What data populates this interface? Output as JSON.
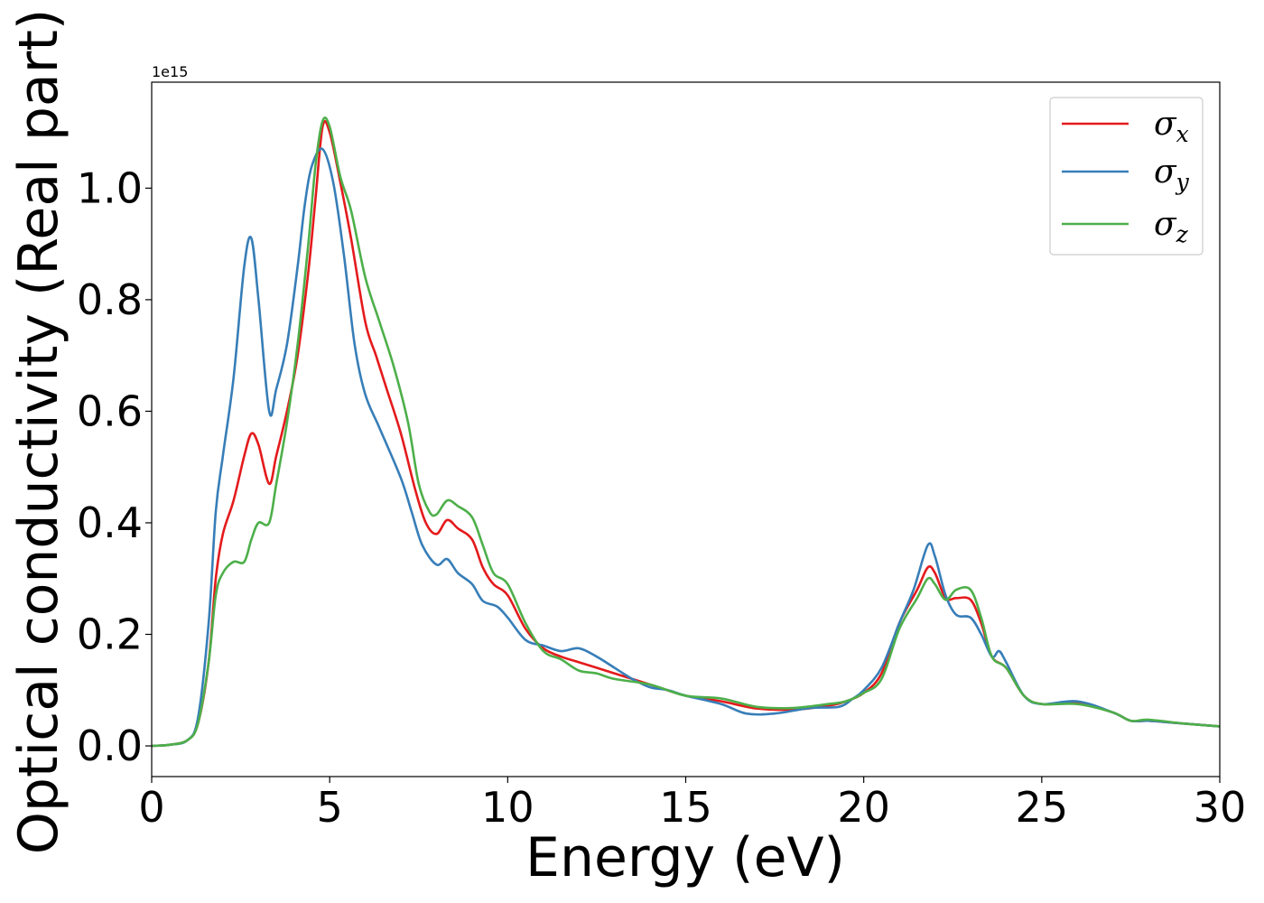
{
  "chart_data": {
    "type": "line",
    "title": "",
    "xlabel": "Energy (eV)",
    "ylabel": "Optical conductivity (Real part)",
    "y_offset_label": "1e15",
    "xlim": [
      0,
      30
    ],
    "ylim": [
      -0.055,
      1.19
    ],
    "x_ticks": [
      0,
      5,
      10,
      15,
      20,
      25,
      30
    ],
    "x_tick_labels": [
      "0",
      "5",
      "10",
      "15",
      "20",
      "25",
      "30"
    ],
    "y_ticks": [
      0.0,
      0.2,
      0.4,
      0.6,
      0.8,
      1.0
    ],
    "y_tick_labels": [
      "0.0",
      "0.2",
      "0.4",
      "0.6",
      "0.8",
      "1.0"
    ],
    "grid": false,
    "legend_position": "top-right",
    "series": [
      {
        "name": "σ",
        "subscript": "x",
        "color": "#e41a1c",
        "points": [
          [
            0,
            0
          ],
          [
            0.5,
            0.002
          ],
          [
            1.0,
            0.01
          ],
          [
            1.3,
            0.04
          ],
          [
            1.6,
            0.15
          ],
          [
            1.8,
            0.3
          ],
          [
            2.0,
            0.38
          ],
          [
            2.3,
            0.44
          ],
          [
            2.6,
            0.52
          ],
          [
            2.8,
            0.56
          ],
          [
            3.0,
            0.54
          ],
          [
            3.3,
            0.47
          ],
          [
            3.5,
            0.52
          ],
          [
            3.8,
            0.6
          ],
          [
            4.1,
            0.7
          ],
          [
            4.4,
            0.85
          ],
          [
            4.6,
            0.98
          ],
          [
            4.8,
            1.11
          ],
          [
            5.0,
            1.1
          ],
          [
            5.3,
            1.01
          ],
          [
            5.6,
            0.91
          ],
          [
            6.0,
            0.76
          ],
          [
            6.3,
            0.7
          ],
          [
            6.6,
            0.64
          ],
          [
            7.0,
            0.56
          ],
          [
            7.4,
            0.46
          ],
          [
            7.7,
            0.4
          ],
          [
            8.0,
            0.38
          ],
          [
            8.3,
            0.405
          ],
          [
            8.6,
            0.39
          ],
          [
            9.0,
            0.37
          ],
          [
            9.3,
            0.32
          ],
          [
            9.6,
            0.29
          ],
          [
            10.0,
            0.27
          ],
          [
            10.5,
            0.21
          ],
          [
            11.0,
            0.175
          ],
          [
            11.5,
            0.16
          ],
          [
            12.0,
            0.15
          ],
          [
            12.5,
            0.14
          ],
          [
            13.0,
            0.13
          ],
          [
            14.0,
            0.11
          ],
          [
            15.0,
            0.09
          ],
          [
            16.0,
            0.08
          ],
          [
            17.0,
            0.067
          ],
          [
            18.0,
            0.065
          ],
          [
            19.0,
            0.072
          ],
          [
            19.5,
            0.08
          ],
          [
            20.0,
            0.095
          ],
          [
            20.5,
            0.13
          ],
          [
            21.0,
            0.22
          ],
          [
            21.5,
            0.28
          ],
          [
            21.8,
            0.32
          ],
          [
            22.0,
            0.31
          ],
          [
            22.3,
            0.265
          ],
          [
            22.6,
            0.265
          ],
          [
            23.0,
            0.262
          ],
          [
            23.3,
            0.22
          ],
          [
            23.6,
            0.16
          ],
          [
            24.0,
            0.14
          ],
          [
            24.5,
            0.09
          ],
          [
            25.0,
            0.075
          ],
          [
            26.0,
            0.077
          ],
          [
            27.0,
            0.06
          ],
          [
            27.5,
            0.045
          ],
          [
            28.0,
            0.045
          ],
          [
            29.0,
            0.04
          ],
          [
            30.0,
            0.035
          ]
        ]
      },
      {
        "name": "σ",
        "subscript": "y",
        "color": "#377eb8",
        "points": [
          [
            0,
            0
          ],
          [
            0.5,
            0.002
          ],
          [
            1.0,
            0.01
          ],
          [
            1.3,
            0.05
          ],
          [
            1.6,
            0.22
          ],
          [
            1.8,
            0.42
          ],
          [
            2.0,
            0.52
          ],
          [
            2.3,
            0.66
          ],
          [
            2.6,
            0.86
          ],
          [
            2.8,
            0.91
          ],
          [
            3.0,
            0.8
          ],
          [
            3.3,
            0.6
          ],
          [
            3.5,
            0.64
          ],
          [
            3.8,
            0.72
          ],
          [
            4.1,
            0.86
          ],
          [
            4.3,
            0.97
          ],
          [
            4.5,
            1.04
          ],
          [
            4.8,
            1.07
          ],
          [
            5.1,
            1.01
          ],
          [
            5.4,
            0.88
          ],
          [
            5.7,
            0.72
          ],
          [
            6.0,
            0.63
          ],
          [
            6.4,
            0.57
          ],
          [
            7.0,
            0.48
          ],
          [
            7.3,
            0.42
          ],
          [
            7.6,
            0.36
          ],
          [
            8.0,
            0.325
          ],
          [
            8.3,
            0.335
          ],
          [
            8.6,
            0.31
          ],
          [
            9.0,
            0.29
          ],
          [
            9.3,
            0.26
          ],
          [
            9.7,
            0.25
          ],
          [
            10.0,
            0.23
          ],
          [
            10.5,
            0.19
          ],
          [
            11.0,
            0.18
          ],
          [
            11.5,
            0.17
          ],
          [
            12.0,
            0.175
          ],
          [
            12.5,
            0.16
          ],
          [
            13.0,
            0.14
          ],
          [
            13.5,
            0.12
          ],
          [
            14.0,
            0.105
          ],
          [
            14.5,
            0.1
          ],
          [
            15.0,
            0.09
          ],
          [
            16.0,
            0.075
          ],
          [
            16.7,
            0.058
          ],
          [
            17.5,
            0.058
          ],
          [
            18.5,
            0.068
          ],
          [
            19.3,
            0.07
          ],
          [
            19.7,
            0.085
          ],
          [
            20.0,
            0.1
          ],
          [
            20.5,
            0.14
          ],
          [
            21.0,
            0.22
          ],
          [
            21.4,
            0.28
          ],
          [
            21.8,
            0.36
          ],
          [
            22.0,
            0.34
          ],
          [
            22.3,
            0.27
          ],
          [
            22.6,
            0.235
          ],
          [
            23.0,
            0.23
          ],
          [
            23.3,
            0.2
          ],
          [
            23.6,
            0.16
          ],
          [
            23.8,
            0.17
          ],
          [
            24.0,
            0.15
          ],
          [
            24.5,
            0.09
          ],
          [
            25.0,
            0.075
          ],
          [
            26.0,
            0.08
          ],
          [
            27.0,
            0.06
          ],
          [
            27.5,
            0.045
          ],
          [
            28.0,
            0.045
          ],
          [
            29.0,
            0.04
          ],
          [
            30.0,
            0.035
          ]
        ]
      },
      {
        "name": "σ",
        "subscript": "z",
        "color": "#4daf4a",
        "points": [
          [
            0,
            0
          ],
          [
            0.5,
            0.002
          ],
          [
            1.0,
            0.01
          ],
          [
            1.3,
            0.04
          ],
          [
            1.6,
            0.15
          ],
          [
            1.8,
            0.27
          ],
          [
            2.0,
            0.31
          ],
          [
            2.3,
            0.33
          ],
          [
            2.6,
            0.33
          ],
          [
            2.8,
            0.37
          ],
          [
            3.0,
            0.4
          ],
          [
            3.3,
            0.4
          ],
          [
            3.5,
            0.47
          ],
          [
            3.8,
            0.58
          ],
          [
            4.1,
            0.72
          ],
          [
            4.4,
            0.9
          ],
          [
            4.6,
            1.04
          ],
          [
            4.8,
            1.12
          ],
          [
            5.0,
            1.11
          ],
          [
            5.3,
            1.02
          ],
          [
            5.6,
            0.96
          ],
          [
            6.0,
            0.84
          ],
          [
            6.4,
            0.76
          ],
          [
            6.8,
            0.68
          ],
          [
            7.2,
            0.58
          ],
          [
            7.5,
            0.47
          ],
          [
            7.8,
            0.42
          ],
          [
            8.0,
            0.415
          ],
          [
            8.3,
            0.44
          ],
          [
            8.6,
            0.43
          ],
          [
            9.0,
            0.41
          ],
          [
            9.3,
            0.36
          ],
          [
            9.6,
            0.31
          ],
          [
            10.0,
            0.29
          ],
          [
            10.5,
            0.22
          ],
          [
            11.0,
            0.17
          ],
          [
            11.5,
            0.155
          ],
          [
            12.0,
            0.135
          ],
          [
            12.5,
            0.13
          ],
          [
            13.0,
            0.12
          ],
          [
            14.0,
            0.11
          ],
          [
            15.0,
            0.09
          ],
          [
            16.0,
            0.085
          ],
          [
            17.0,
            0.07
          ],
          [
            18.0,
            0.068
          ],
          [
            19.0,
            0.075
          ],
          [
            19.5,
            0.08
          ],
          [
            20.0,
            0.095
          ],
          [
            20.5,
            0.12
          ],
          [
            21.0,
            0.21
          ],
          [
            21.5,
            0.265
          ],
          [
            21.8,
            0.3
          ],
          [
            22.0,
            0.29
          ],
          [
            22.3,
            0.262
          ],
          [
            22.6,
            0.28
          ],
          [
            23.0,
            0.28
          ],
          [
            23.3,
            0.23
          ],
          [
            23.6,
            0.16
          ],
          [
            24.0,
            0.14
          ],
          [
            24.5,
            0.09
          ],
          [
            25.0,
            0.075
          ],
          [
            26.0,
            0.075
          ],
          [
            27.0,
            0.06
          ],
          [
            27.5,
            0.045
          ],
          [
            28.0,
            0.047
          ],
          [
            29.0,
            0.04
          ],
          [
            30.0,
            0.035
          ]
        ]
      }
    ]
  }
}
